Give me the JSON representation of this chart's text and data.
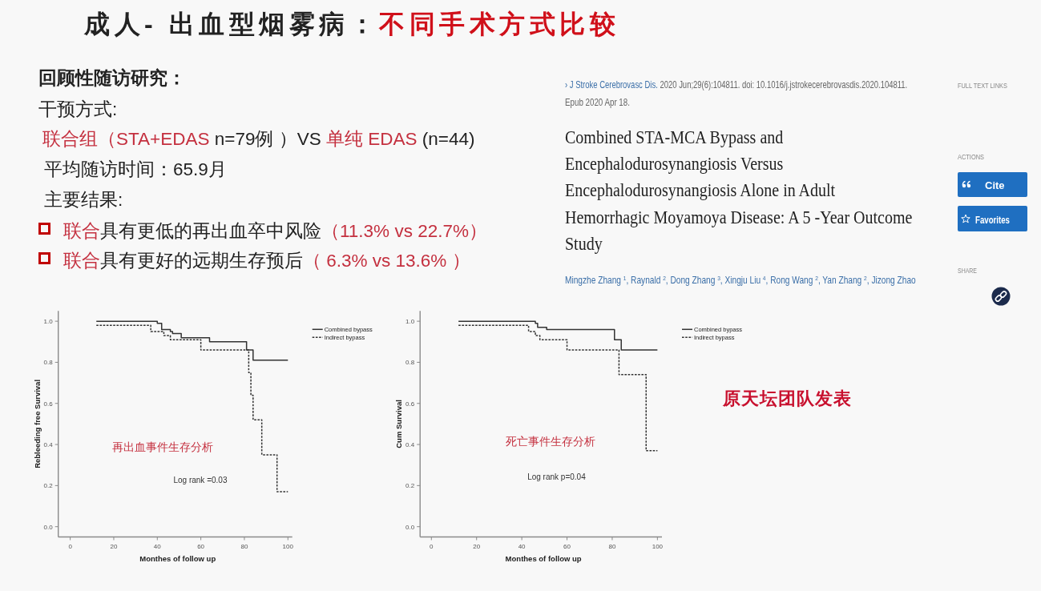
{
  "chart_data": [
    {
      "type": "other",
      "title": "成人- 出血型烟雾病：不同手术方式比较",
      "annotations": [
        "回顾性随访研究：",
        "干预方式:",
        "联合组（STA+EDAS n=79例 ）VS 单纯 EDAS (n=44)",
        "平均随访时间：65.9月",
        "主要结果:",
        "联合具有更低的再出血卒中风险（11.3% vs 22.7%）",
        "联合具有更好的远期生存预后（ 6.3% vs 13.6% ）"
      ]
    },
    {
      "type": "other",
      "title": "Combined STA-MCA Bypass and Encephalodurosynangiosis Versus Encephalodurosynangiosis Alone in Adult Hemorrhagic Moyamoya Disease: A 5 -Year Outcome Study",
      "annotations": [
        "› J Stroke Cerebrovasc Dis. 2020 Jun;29(6):104811. doi: 10.1016/j.jstrokecerebrovasdis.2020.104811.",
        "Epub 2020 Apr 18.",
        "Mingzhe Zhang $^{1}$, Raynald $^{2}$, Dong Zhang $^{3}$, Xingju Liu $^{4}$, Rong Wang $^{2}$, Yan Zhang $^{2}$, Jizong Zhao",
        "FULL TEXT LINKS",
        "ACTIONS",
        "Cite",
        "Favorites",
        "SHARE"
      ]
    },
    {
      "type": "step",
      "xlabel": "Monthes of follow up",
      "ylabel": "Rebleeding free Survival",
      "xlim": [
        -5.5,
        102
      ],
      "xticks": [
        0,
        20,
        40,
        60,
        80,
        100
      ],
      "ylim": [
        -0.05,
        1.05
      ],
      "yticks": [
        {
          "value": 0,
          "label": "0.0"
        },
        {
          "value": 0.2,
          "label": "0.2"
        },
        {
          "value": 0.4,
          "label": "0.4"
        },
        {
          "value": 0.6,
          "label": "0.6"
        },
        {
          "value": 0.8,
          "label": "0.8"
        },
        {
          "value": 1,
          "label": "1.0"
        }
      ],
      "legend": "top right",
      "series": [
        {
          "name": "Combined bypass",
          "color": "#333333",
          "line_style": "solid",
          "x": [
            12,
            40,
            42,
            46,
            47,
            51,
            64,
            81,
            84,
            100
          ],
          "values": [
            1.0,
            0.99,
            0.96,
            0.95,
            0.94,
            0.92,
            0.9,
            0.86,
            0.81,
            0.81
          ]
        },
        {
          "name": "Indirect bypass",
          "color": "#333333",
          "line_style": "dashed",
          "x": [
            12,
            37,
            43,
            46,
            60,
            82,
            83,
            84,
            88,
            95,
            100
          ],
          "values": [
            0.98,
            0.95,
            0.93,
            0.91,
            0.86,
            0.75,
            0.64,
            0.52,
            0.35,
            0.17,
            0.17
          ]
        }
      ],
      "annotations": [
        "再出血事件生存分析",
        "Log rank =0.03"
      ]
    },
    {
      "type": "step",
      "xlabel": "Monthes of follow up",
      "ylabel": "Cum Survival",
      "xlim": [
        -5,
        102
      ],
      "xticks": [
        0,
        20,
        40,
        60,
        80,
        100
      ],
      "ylim": [
        -0.05,
        1.05
      ],
      "yticks": [
        {
          "value": 0,
          "label": "0.0"
        },
        {
          "value": 0.2,
          "label": "0.2"
        },
        {
          "value": 0.4,
          "label": "0.4"
        },
        {
          "value": 0.6,
          "label": "0.6"
        },
        {
          "value": 0.8,
          "label": "0.8"
        },
        {
          "value": 1,
          "label": "1.0"
        }
      ],
      "legend": "top right",
      "series": [
        {
          "name": "Combined bypass",
          "color": "#333333",
          "line_style": "solid",
          "x": [
            12,
            46,
            47,
            51,
            81,
            84,
            100
          ],
          "values": [
            1.0,
            0.99,
            0.97,
            0.96,
            0.91,
            0.86,
            0.86
          ]
        },
        {
          "name": "Indirect bypass",
          "color": "#333333",
          "line_style": "dashed",
          "x": [
            12,
            43,
            46,
            48,
            60,
            83,
            95,
            100
          ],
          "values": [
            0.98,
            0.95,
            0.93,
            0.91,
            0.86,
            0.74,
            0.37,
            0.37
          ]
        }
      ],
      "annotations": [
        "死亡事件生存分析",
        "Log rank p=0.04"
      ]
    },
    {
      "type": "other",
      "annotations": [
        "原天坛团队发表"
      ]
    }
  ]
}
